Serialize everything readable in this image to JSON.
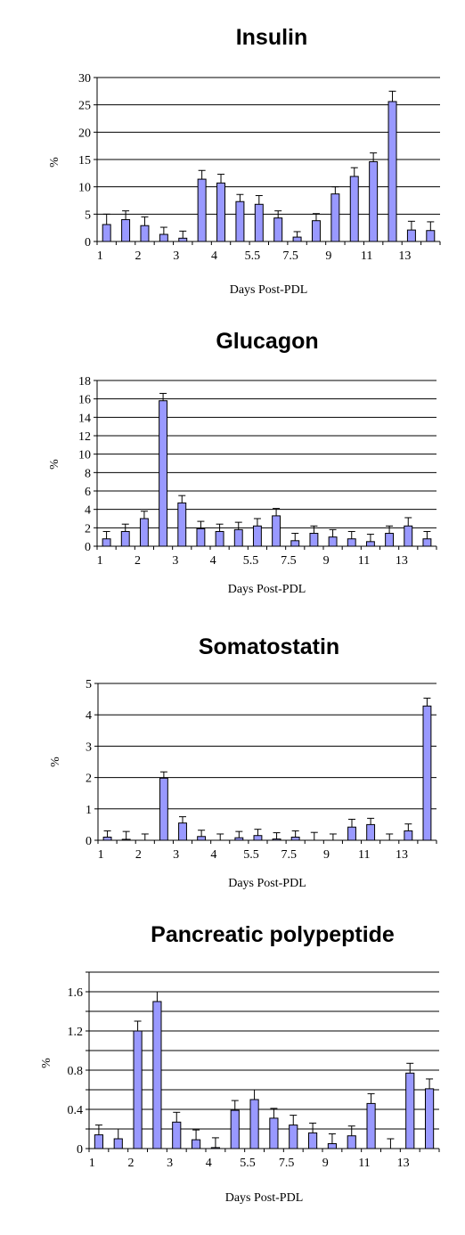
{
  "colors": {
    "bar_fill": "#9999ff",
    "bar_stroke": "#000000",
    "gridline": "#000000",
    "background": "#ffffff"
  },
  "chart_data": [
    {
      "type": "bar",
      "title": "Insulin",
      "ylabel": "%",
      "xlabel": "Days Post-PDL",
      "ylim": [
        0,
        30
      ],
      "yticks": [
        0,
        5,
        10,
        15,
        20,
        25,
        30
      ],
      "ytick_labels": [
        "0",
        "5",
        "10",
        "15",
        "20",
        "25",
        "30"
      ],
      "grid": true,
      "x_tick_labels": [
        "1",
        "",
        "2",
        "",
        "3",
        "",
        "4",
        "",
        "5.5",
        "",
        "7.5",
        "",
        "9",
        "",
        "11",
        "",
        "13",
        ""
      ],
      "values": [
        3.1,
        4.0,
        2.9,
        1.3,
        0.6,
        11.4,
        10.7,
        7.3,
        6.8,
        4.3,
        0.8,
        3.8,
        8.7,
        11.9,
        14.6,
        25.6,
        2.1,
        2.0
      ],
      "errors": [
        1.9,
        1.6,
        1.6,
        1.3,
        1.3,
        1.6,
        1.6,
        1.3,
        1.6,
        1.3,
        1.0,
        1.3,
        1.3,
        1.6,
        1.6,
        1.9,
        1.6,
        1.6
      ]
    },
    {
      "type": "bar",
      "title": "Glucagon",
      "ylabel": "%",
      "xlabel": "Days Post-PDL",
      "ylim": [
        0,
        18
      ],
      "yticks": [
        0,
        2,
        4,
        6,
        8,
        10,
        12,
        14,
        16,
        18
      ],
      "ytick_labels": [
        "0",
        "2",
        "4",
        "6",
        "8",
        "10",
        "12",
        "14",
        "16",
        "18"
      ],
      "grid": true,
      "x_tick_labels": [
        "1",
        "",
        "2",
        "",
        "3",
        "",
        "4",
        "",
        "5.5",
        "",
        "7.5",
        "",
        "9",
        "",
        "11",
        "",
        "13",
        ""
      ],
      "values": [
        0.8,
        1.6,
        3.0,
        15.8,
        4.7,
        1.9,
        1.6,
        1.8,
        2.2,
        3.3,
        0.6,
        1.4,
        1.0,
        0.8,
        0.5,
        1.4,
        2.2,
        0.8
      ],
      "errors": [
        0.8,
        0.8,
        0.8,
        0.8,
        0.8,
        0.8,
        0.8,
        0.8,
        0.8,
        0.8,
        0.8,
        0.8,
        0.8,
        0.8,
        0.8,
        0.8,
        0.9,
        0.8
      ]
    },
    {
      "type": "bar",
      "title": "Somatostatin",
      "ylabel": "%",
      "xlabel": "Days Post-PDL",
      "ylim": [
        0,
        5
      ],
      "yticks": [
        0,
        1,
        2,
        3,
        4,
        5
      ],
      "ytick_labels": [
        "0",
        "1",
        "2",
        "3",
        "4",
        "5"
      ],
      "grid": true,
      "x_tick_labels": [
        "1",
        "",
        "2",
        "",
        "3",
        "",
        "4",
        "",
        "5.5",
        "",
        "7.5",
        "",
        "9",
        "",
        "11",
        "",
        "13",
        ""
      ],
      "values": [
        0.1,
        0.03,
        0.0,
        1.98,
        0.55,
        0.12,
        0.0,
        0.08,
        0.15,
        0.04,
        0.1,
        0.0,
        0.0,
        0.42,
        0.5,
        0.0,
        0.3,
        4.28
      ],
      "errors": [
        0.2,
        0.25,
        0.2,
        0.2,
        0.2,
        0.2,
        0.2,
        0.2,
        0.2,
        0.2,
        0.2,
        0.25,
        0.2,
        0.25,
        0.2,
        0.2,
        0.22,
        0.25
      ]
    },
    {
      "type": "bar",
      "title": "Pancreatic polypeptide",
      "ylabel": "%",
      "xlabel": "Days Post-PDL",
      "ylim": [
        0,
        1.8
      ],
      "yticks": [
        0,
        0.2,
        0.4,
        0.6,
        0.8,
        1.0,
        1.2,
        1.4,
        1.6,
        1.8
      ],
      "ytick_labels": [
        "0",
        "",
        "0.4",
        "",
        "0.8",
        "",
        "1.2",
        "",
        "1.6",
        ""
      ],
      "grid": true,
      "x_tick_labels": [
        "1",
        "",
        "2",
        "",
        "3",
        "",
        "4",
        "",
        "5.5",
        "",
        "7.5",
        "",
        "9",
        "",
        "11",
        "",
        "13",
        ""
      ],
      "values": [
        0.14,
        0.1,
        1.2,
        1.5,
        0.27,
        0.09,
        0.01,
        0.39,
        0.5,
        0.31,
        0.24,
        0.16,
        0.05,
        0.13,
        0.46,
        0.0,
        0.77,
        0.61
      ],
      "errors": [
        0.1,
        0.1,
        0.1,
        0.1,
        0.1,
        0.1,
        0.1,
        0.1,
        0.1,
        0.1,
        0.1,
        0.1,
        0.1,
        0.1,
        0.1,
        0.1,
        0.1,
        0.1
      ]
    }
  ]
}
